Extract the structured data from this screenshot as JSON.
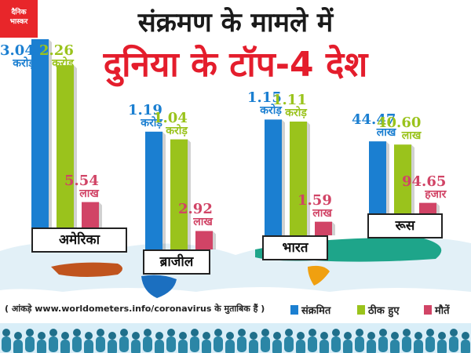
{
  "brand": {
    "line1": "दैनिक",
    "line2": "भास्कर"
  },
  "title": {
    "line1": "संक्रमण के मामले में",
    "line2": "दुनिया के टॉप-4 देश"
  },
  "source_note": "( आंकड़े www.worldometers.info/coronavirus के मुताबिक हैं )",
  "colors": {
    "infected": "#1b7fd1",
    "recovered": "#9ac31c",
    "deaths": "#d14466",
    "title_red": "#e41d2c",
    "map": "#cfe6f2"
  },
  "chart_data": {
    "type": "bar",
    "title": "संक्रमण के मामले में दुनिया के टॉप-4 देश",
    "categories": [
      "अमेरिका",
      "ब्राजील",
      "भारत",
      "रूस"
    ],
    "series": [
      {
        "name": "संक्रमित",
        "values_lakh": [
          304,
          119,
          115,
          44.47
        ],
        "labels": [
          [
            "3.04",
            "करोड़"
          ],
          [
            "1.19",
            "करोड़"
          ],
          [
            "1.15",
            "करोड़"
          ],
          [
            "44.47",
            "लाख"
          ]
        ]
      },
      {
        "name": "ठीक हुए",
        "values_lakh": [
          226,
          104,
          111,
          40.6
        ],
        "labels": [
          [
            "2.26",
            "करोड़"
          ],
          [
            "1.04",
            "करोड़"
          ],
          [
            "1.11",
            "करोड़"
          ],
          [
            "40.60",
            "लाख"
          ]
        ]
      },
      {
        "name": "मौतें",
        "values_lakh": [
          5.54,
          2.92,
          1.59,
          0.9465
        ],
        "labels": [
          [
            "5.54",
            "लाख"
          ],
          [
            "2.92",
            "लाख"
          ],
          [
            "1.59",
            "लाख"
          ],
          [
            "94.65",
            "हजार"
          ]
        ]
      }
    ],
    "unit": "लाख",
    "legend": "bottom-right"
  }
}
